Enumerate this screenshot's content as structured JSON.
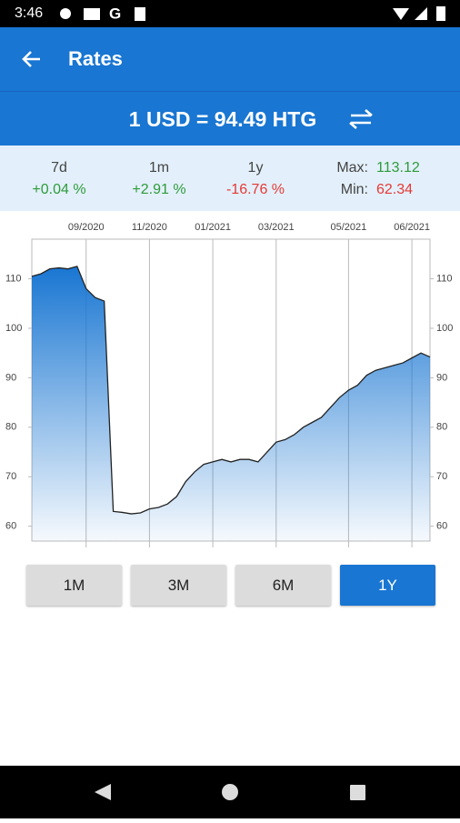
{
  "status_bar": {
    "time": "3:46"
  },
  "app_bar": {
    "title": "Rates"
  },
  "rate": {
    "text": "1 USD = 94.49 HTG"
  },
  "stats": {
    "items": [
      {
        "label": "7d",
        "value": "+0.04 %",
        "color": "#2e9b3a"
      },
      {
        "label": "1m",
        "value": "+2.91 %",
        "color": "#2e9b3a"
      },
      {
        "label": "1y",
        "value": "-16.76 %",
        "color": "#e53935"
      }
    ],
    "max_label": "Max:",
    "max_value": "113.12",
    "min_label": "Min:",
    "min_value": "62.34"
  },
  "chart_data": {
    "type": "area",
    "color": "#1976d2",
    "line_color": "#222222",
    "categories": [
      null,
      null,
      null,
      null,
      null,
      null,
      "09/2020",
      null,
      null,
      null,
      null,
      null,
      null,
      "11/2020",
      null,
      null,
      null,
      null,
      null,
      null,
      "01/2021",
      null,
      null,
      null,
      null,
      null,
      null,
      "03/2021",
      null,
      null,
      null,
      null,
      null,
      null,
      null,
      "05/2021",
      null,
      null,
      null,
      null,
      null,
      null,
      "06/2021",
      null,
      null
    ],
    "values": [
      110.5,
      111,
      112,
      112.2,
      112,
      112.5,
      108,
      106.2,
      105.5,
      63,
      62.8,
      62.5,
      62.7,
      63.5,
      63.8,
      64.5,
      66,
      69,
      71,
      72.5,
      73,
      73.5,
      73,
      73.5,
      73.5,
      73,
      75,
      77,
      77.5,
      78.5,
      80,
      81,
      82,
      84,
      86,
      87.5,
      88.5,
      90.5,
      91.5,
      92,
      92.5,
      93,
      94,
      95,
      94.2
    ],
    "ylim": [
      57,
      118
    ],
    "yticks": [
      60,
      70,
      80,
      90,
      100,
      110
    ],
    "grid": true
  },
  "buttons": {
    "labels": [
      "1M",
      "3M",
      "6M",
      "1Y"
    ],
    "selected": 3
  }
}
